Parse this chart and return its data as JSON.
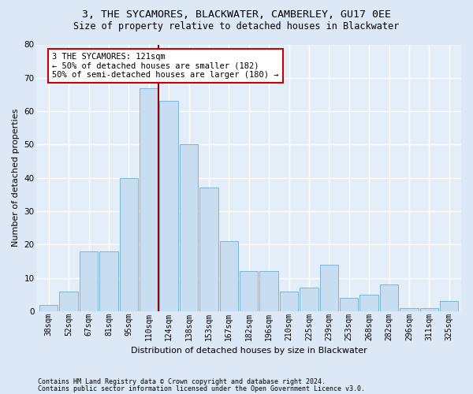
{
  "title1": "3, THE SYCAMORES, BLACKWATER, CAMBERLEY, GU17 0EE",
  "title2": "Size of property relative to detached houses in Blackwater",
  "xlabel": "Distribution of detached houses by size in Blackwater",
  "ylabel": "Number of detached properties",
  "footnote1": "Contains HM Land Registry data © Crown copyright and database right 2024.",
  "footnote2": "Contains public sector information licensed under the Open Government Licence v3.0.",
  "bar_labels": [
    "38sqm",
    "52sqm",
    "67sqm",
    "81sqm",
    "95sqm",
    "110sqm",
    "124sqm",
    "138sqm",
    "153sqm",
    "167sqm",
    "182sqm",
    "196sqm",
    "210sqm",
    "225sqm",
    "239sqm",
    "253sqm",
    "268sqm",
    "282sqm",
    "296sqm",
    "311sqm",
    "325sqm"
  ],
  "bar_values": [
    2,
    6,
    18,
    18,
    40,
    67,
    63,
    50,
    37,
    21,
    12,
    12,
    6,
    7,
    14,
    4,
    5,
    8,
    1,
    1,
    3
  ],
  "bar_color": "#c9ddf0",
  "bar_edge_color": "#7fb3d9",
  "vline_x": 5.5,
  "vline_color": "#990000",
  "annotation_box_text": "3 THE SYCAMORES: 121sqm\n← 50% of detached houses are smaller (182)\n50% of semi-detached houses are larger (180) →",
  "annotation_box_color": "#cc0000",
  "annotation_box_face": "white",
  "ylim": [
    0,
    80
  ],
  "yticks": [
    0,
    10,
    20,
    30,
    40,
    50,
    60,
    70,
    80
  ],
  "bg_color": "#dce8f5",
  "plot_bg_color": "#e4eef8",
  "grid_color": "#ffffff",
  "title_fontsize": 9.5,
  "subtitle_fontsize": 8.5,
  "axis_label_fontsize": 8,
  "tick_fontsize": 7,
  "annot_fontsize": 7.5,
  "footnote_fontsize": 6
}
